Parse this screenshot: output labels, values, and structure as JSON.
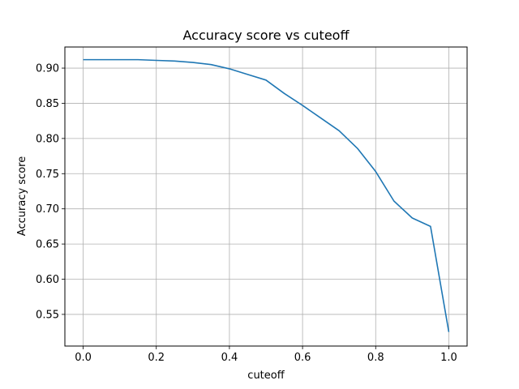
{
  "chart_data": {
    "type": "line",
    "title": "Accuracy score vs cuteoff",
    "xlabel": "cuteoff",
    "ylabel": "Accuracy score",
    "xlim": [
      -0.05,
      1.05
    ],
    "ylim": [
      0.505,
      0.93
    ],
    "xticks": [
      0.0,
      0.2,
      0.4,
      0.6,
      0.8,
      1.0
    ],
    "xtick_labels": [
      "0.0",
      "0.2",
      "0.4",
      "0.6",
      "0.8",
      "1.0"
    ],
    "yticks": [
      0.55,
      0.6,
      0.65,
      0.7,
      0.75,
      0.8,
      0.85,
      0.9
    ],
    "ytick_labels": [
      "0.55",
      "0.60",
      "0.65",
      "0.70",
      "0.75",
      "0.80",
      "0.85",
      "0.90"
    ],
    "grid": true,
    "series": [
      {
        "color": "#1f77b4",
        "x": [
          0.0,
          0.05,
          0.1,
          0.15,
          0.2,
          0.25,
          0.3,
          0.35,
          0.4,
          0.45,
          0.5,
          0.55,
          0.6,
          0.65,
          0.7,
          0.75,
          0.8,
          0.85,
          0.9,
          0.95,
          1.0
        ],
        "y": [
          0.912,
          0.912,
          0.912,
          0.912,
          0.911,
          0.91,
          0.908,
          0.905,
          0.899,
          0.891,
          0.883,
          0.864,
          0.847,
          0.829,
          0.811,
          0.786,
          0.753,
          0.711,
          0.687,
          0.675,
          0.525
        ]
      }
    ]
  }
}
